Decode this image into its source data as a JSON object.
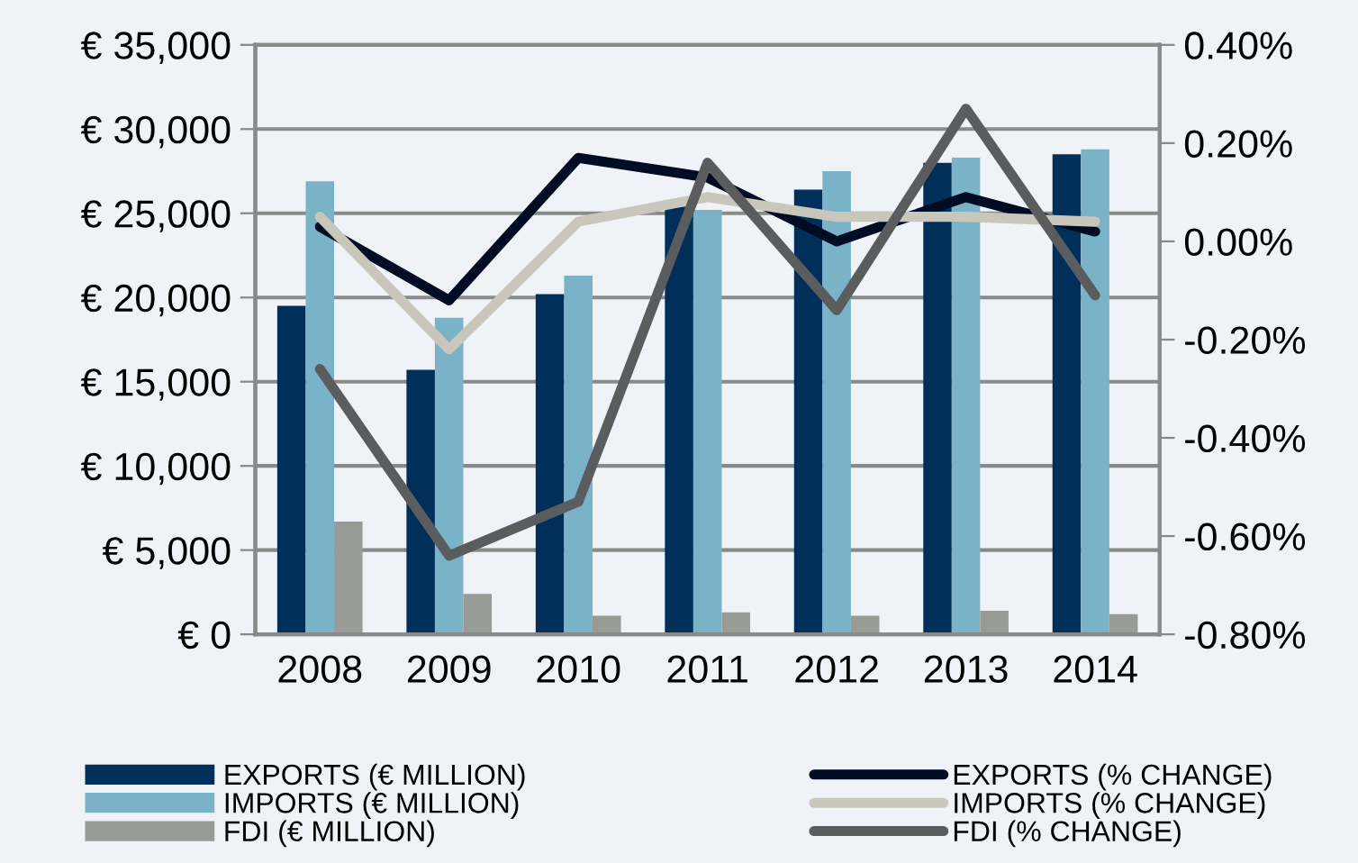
{
  "chart_data": {
    "type": "bar",
    "categories": [
      "2008",
      "2009",
      "2010",
      "2011",
      "2012",
      "2013",
      "2014"
    ],
    "series": [
      {
        "name": "EXPORTS (€ MILLION)",
        "color": "#00305a",
        "values": [
          19500,
          15700,
          20200,
          25400,
          26400,
          28000,
          28500
        ]
      },
      {
        "name": "IMPORTS (€ MILLION)",
        "color": "#7ab3c8",
        "values": [
          26900,
          18800,
          21300,
          25200,
          27500,
          28300,
          28800
        ]
      },
      {
        "name": "FDI (€ MILLION)",
        "color": "#999b96",
        "values": [
          6700,
          2400,
          1100,
          1300,
          1100,
          1400,
          1200
        ]
      },
      {
        "name": "EXPORTS (% CHANGE)",
        "type": "line",
        "axis": "y2",
        "color": "#000c24",
        "values": [
          0.03,
          -0.12,
          0.17,
          0.13,
          0.0,
          0.09,
          0.02
        ]
      },
      {
        "name": "IMPORTS (% CHANGE)",
        "type": "line",
        "axis": "y2",
        "color": "#c9c6bc",
        "values": [
          0.05,
          -0.22,
          0.04,
          0.09,
          0.05,
          0.05,
          0.04
        ]
      },
      {
        "name": "FDI (% CHANGE)",
        "type": "line",
        "axis": "y2",
        "color": "#5b5c5e",
        "values": [
          -0.26,
          -0.64,
          -0.53,
          0.16,
          -0.14,
          0.27,
          -0.11
        ]
      }
    ],
    "ylim": [
      0,
      35000
    ],
    "yticks": [
      {
        "value": 0,
        "label": "€ 0"
      },
      {
        "value": 5000,
        "label": "€ 5,000"
      },
      {
        "value": 10000,
        "label": "€ 10,000"
      },
      {
        "value": 15000,
        "label": "€ 15,000"
      },
      {
        "value": 20000,
        "label": "€ 20,000"
      },
      {
        "value": 25000,
        "label": "€ 25,000"
      },
      {
        "value": 30000,
        "label": "€ 30,000"
      },
      {
        "value": 35000,
        "label": "€ 35,000"
      }
    ],
    "y2lim": [
      -0.8,
      0.4
    ],
    "y2ticks": [
      {
        "value": -0.8,
        "label": "-0.80%"
      },
      {
        "value": -0.6,
        "label": "-0.60%"
      },
      {
        "value": -0.4,
        "label": "-0.40%"
      },
      {
        "value": -0.2,
        "label": "-0.20%"
      },
      {
        "value": 0,
        "label": "0.00%"
      },
      {
        "value": 0.2,
        "label": "0.20%"
      },
      {
        "value": 0.4,
        "label": "0.40%"
      }
    ],
    "grid": "y",
    "legend": "bottom",
    "marker": "none",
    "line_style": "solid"
  }
}
